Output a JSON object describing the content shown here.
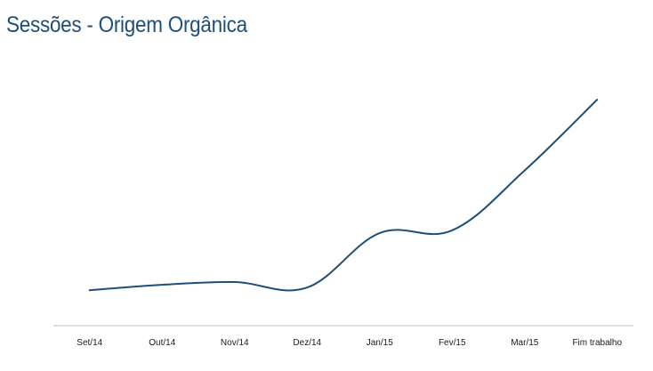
{
  "slide": {
    "title": "Sessões - Origem Orgânica",
    "title_color": "#1f4e79"
  },
  "chart_data": {
    "type": "line",
    "title": "",
    "xlabel": "",
    "ylabel": "",
    "categories": [
      "Set/14",
      "Out/14",
      "Nov/14",
      "Dez/14",
      "Jan/15",
      "Fev/15",
      "Mar/15",
      "Fim trabalho"
    ],
    "series": [
      {
        "values": [
          13,
          15,
          16,
          14,
          34,
          35,
          57,
          83
        ],
        "color": "#1f4e79"
      }
    ],
    "ylim": [
      0,
      100
    ],
    "grid": false,
    "legend": "none",
    "axis_color": "#bfbfbf",
    "smooth": true
  }
}
